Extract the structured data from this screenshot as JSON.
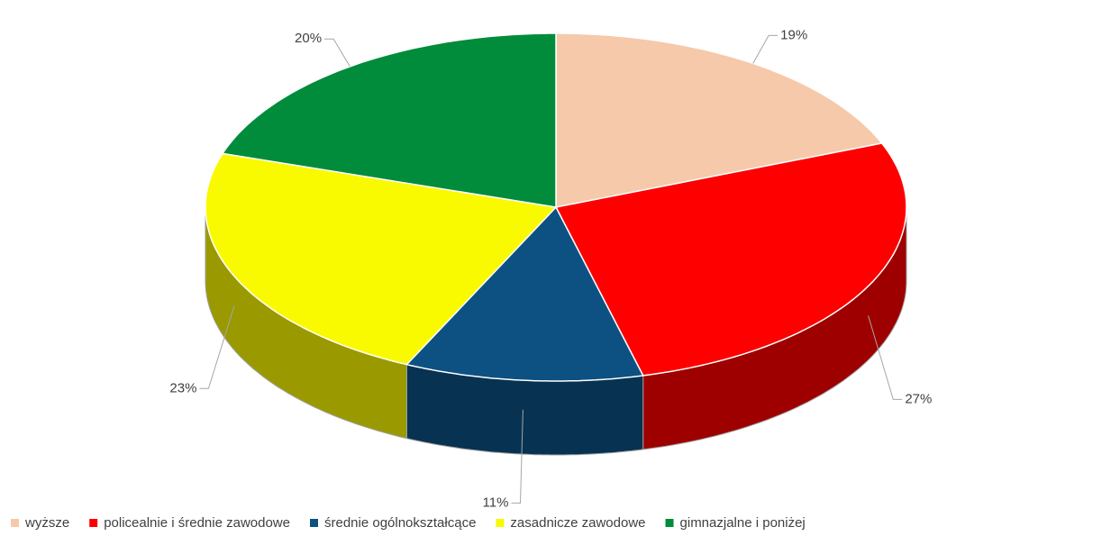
{
  "chart_data": {
    "type": "pie3d",
    "categories": [
      "wyższe",
      "policealnie i średnie zawodowe",
      "średnie ogólnokształcące",
      "zasadnicze zawodowe",
      "gimnazjalne i poniżej"
    ],
    "values": [
      19,
      27,
      11,
      23,
      20
    ],
    "value_labels": [
      "19%",
      "27%",
      "11%",
      "23%",
      "20%"
    ],
    "colors": [
      "#f5c9a9",
      "#ff0000",
      "#0d5183",
      "#f9f900",
      "#008c3a"
    ],
    "legend": "bottom"
  }
}
